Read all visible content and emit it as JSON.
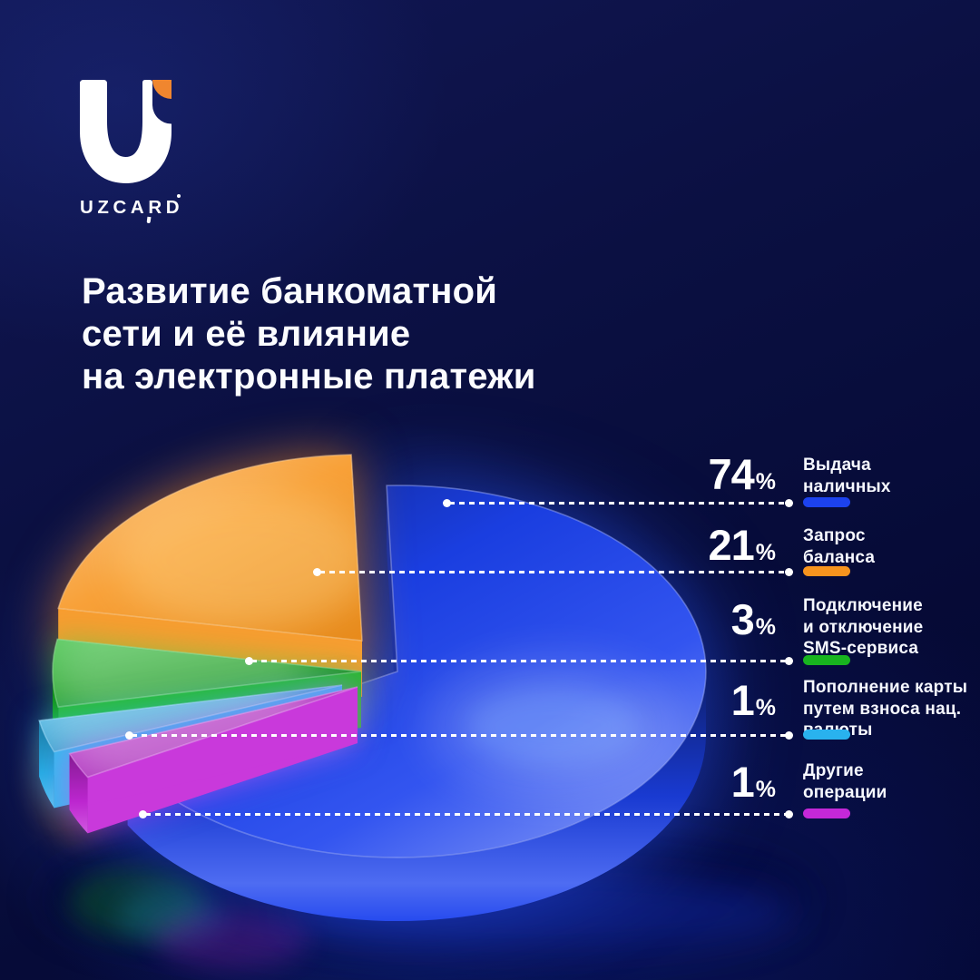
{
  "logo": {
    "brand": "UZCARD",
    "mark": "U",
    "colors": {
      "white": "#ffffff",
      "orange": "#f0862f"
    }
  },
  "title": {
    "lines": [
      "Развитие банкоматной",
      "сети и её влияние",
      "на электронные платежи"
    ]
  },
  "chart_data": {
    "type": "pie",
    "style": "3d-glossy-exploded",
    "title": "Развитие банкоматной сети и её влияние на электронные платежи",
    "unit": "%",
    "total": 100,
    "legend_position": "right",
    "slices": [
      {
        "label": "Выдача наличных",
        "value": 74,
        "color": "#1c42ee"
      },
      {
        "label": "Запрос баланса",
        "value": 21,
        "color": "#f7941e"
      },
      {
        "label": "Подключение и отключение SMS-сервиса",
        "value": 3,
        "color": "#18b41f"
      },
      {
        "label": "Пополнение карты путем взноса нац. валюты",
        "value": 1,
        "color": "#29b2ee"
      },
      {
        "label": "Другие операции",
        "value": 1,
        "color": "#c428d8"
      }
    ]
  },
  "legend": {
    "items": [
      {
        "pct_num": "74",
        "pct_sign": "%",
        "color": "#1c42ee",
        "lines": [
          "Выдача",
          "наличных",
          ""
        ]
      },
      {
        "pct_num": "21",
        "pct_sign": "%",
        "color": "#f7941e",
        "lines": [
          "Запрос",
          "баланса",
          ""
        ]
      },
      {
        "pct_num": "3",
        "pct_sign": "%",
        "color": "#18b41f",
        "lines": [
          "Подключение",
          "и отключение",
          "SMS-сервиса"
        ]
      },
      {
        "pct_num": "1",
        "pct_sign": "%",
        "color": "#29b2ee",
        "lines": [
          "Пополнение карты",
          "путем взноса нац.",
          "валюты"
        ]
      },
      {
        "pct_num": "1",
        "pct_sign": "%",
        "color": "#c428d8",
        "lines": [
          "Другие",
          "операции",
          ""
        ]
      }
    ]
  }
}
